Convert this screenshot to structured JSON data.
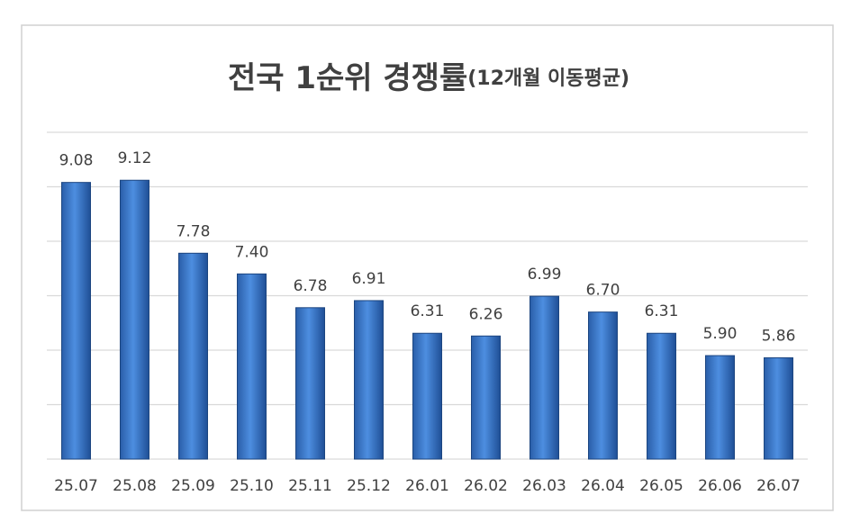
{
  "chart_data": {
    "type": "bar",
    "title": "전국 1순위 경쟁률",
    "subtitle": "(12개월 이동평균)",
    "categories": [
      "25.07",
      "25.08",
      "25.09",
      "25.10",
      "25.11",
      "25.12",
      "26.01",
      "26.02",
      "26.03",
      "26.04",
      "26.05",
      "26.06",
      "26.07"
    ],
    "values": [
      9.08,
      9.12,
      7.78,
      7.4,
      6.78,
      6.91,
      6.31,
      6.26,
      6.99,
      6.7,
      6.31,
      5.9,
      5.86
    ],
    "value_labels": [
      "9.08",
      "9.12",
      "7.78",
      "7.40",
      "6.78",
      "6.91",
      "6.31",
      "6.26",
      "6.99",
      "6.70",
      "6.31",
      "5.90",
      "5.86"
    ],
    "color": "#3a78c9",
    "ylim": [
      4,
      10
    ],
    "yticks": [
      4,
      5,
      6,
      7,
      8,
      9,
      10
    ],
    "grid": true
  }
}
